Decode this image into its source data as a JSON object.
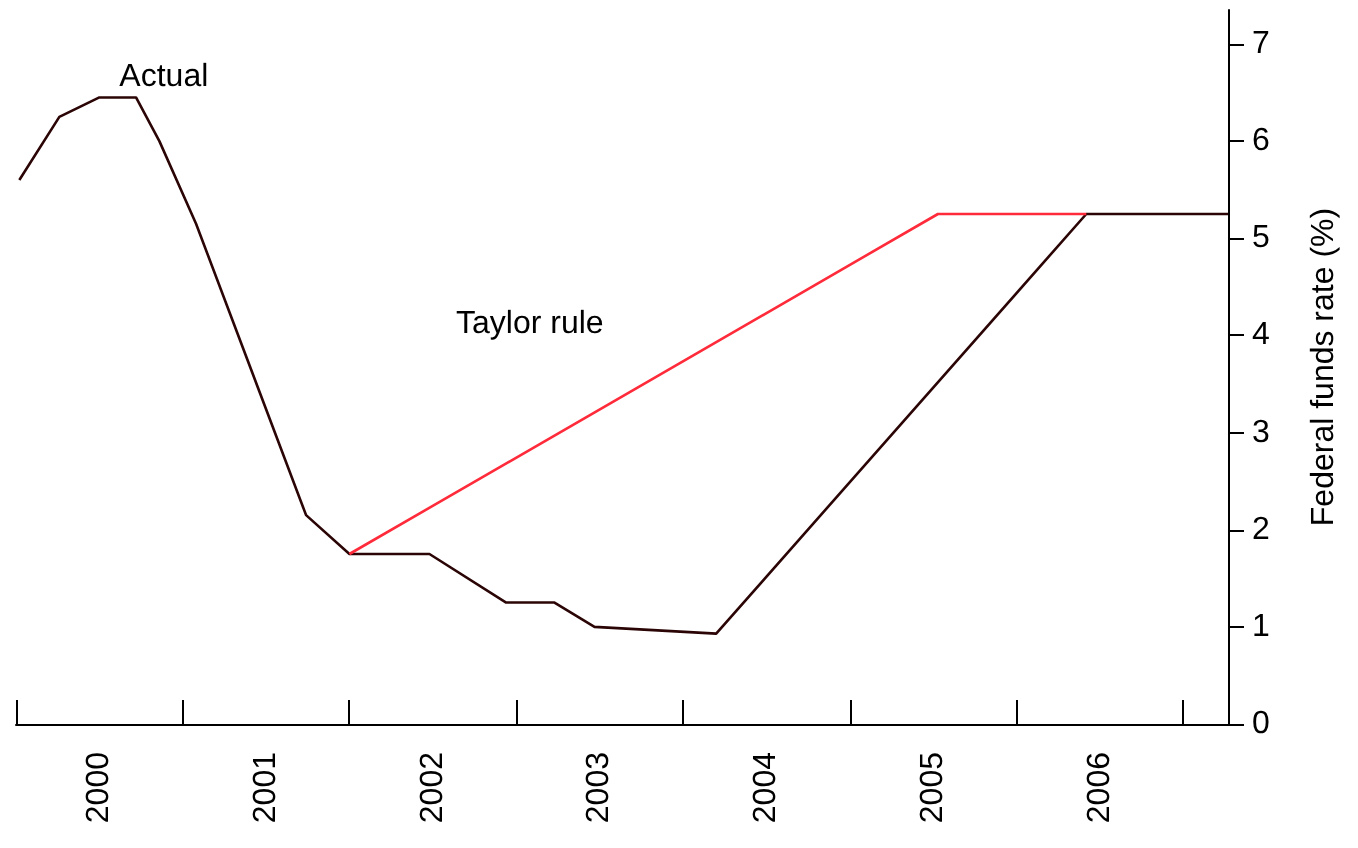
{
  "chart_data": {
    "type": "line",
    "ylabel": "Federal funds rate (%)",
    "xlim": [
      2000,
      2007.27
    ],
    "ylim": [
      0,
      7.35
    ],
    "xticks": [
      {
        "value": 2000,
        "label": null
      },
      {
        "value": 2000.5,
        "label": "2000"
      },
      {
        "value": 2001,
        "label": null
      },
      {
        "value": 2001.5,
        "label": "2001"
      },
      {
        "value": 2002,
        "label": null
      },
      {
        "value": 2002.5,
        "label": "2002"
      },
      {
        "value": 2003,
        "label": null
      },
      {
        "value": 2003.5,
        "label": "2003"
      },
      {
        "value": 2004,
        "label": null
      },
      {
        "value": 2004.5,
        "label": "2004"
      },
      {
        "value": 2005,
        "label": null
      },
      {
        "value": 2005.5,
        "label": "2005"
      },
      {
        "value": 2006,
        "label": null
      },
      {
        "value": 2006.5,
        "label": "2006"
      },
      {
        "value": 2007,
        "label": null
      }
    ],
    "yticks": [
      0,
      1,
      2,
      3,
      4,
      5,
      6,
      7
    ],
    "grid": false,
    "legend": false,
    "marker": "none",
    "line_style": "solid",
    "series": [
      {
        "name": "Actual",
        "color": "#2b0505",
        "x": [
          2000.02,
          2000.26,
          2000.5,
          2000.72,
          2000.86,
          2001.08,
          2001.74,
          2002.0,
          2002.48,
          2002.94,
          2003.23,
          2003.47,
          2004.2,
          2006.42,
          2007.27
        ],
        "values": [
          5.6,
          6.25,
          6.45,
          6.45,
          6.0,
          5.15,
          2.15,
          1.75,
          1.75,
          1.25,
          1.25,
          1.0,
          0.93,
          5.25,
          5.25
        ]
      },
      {
        "name": "Taylor rule",
        "color": "#ff2b3a",
        "x": [
          2002.0,
          2005.53,
          2006.42
        ],
        "values": [
          1.75,
          5.25,
          5.25
        ]
      }
    ]
  }
}
